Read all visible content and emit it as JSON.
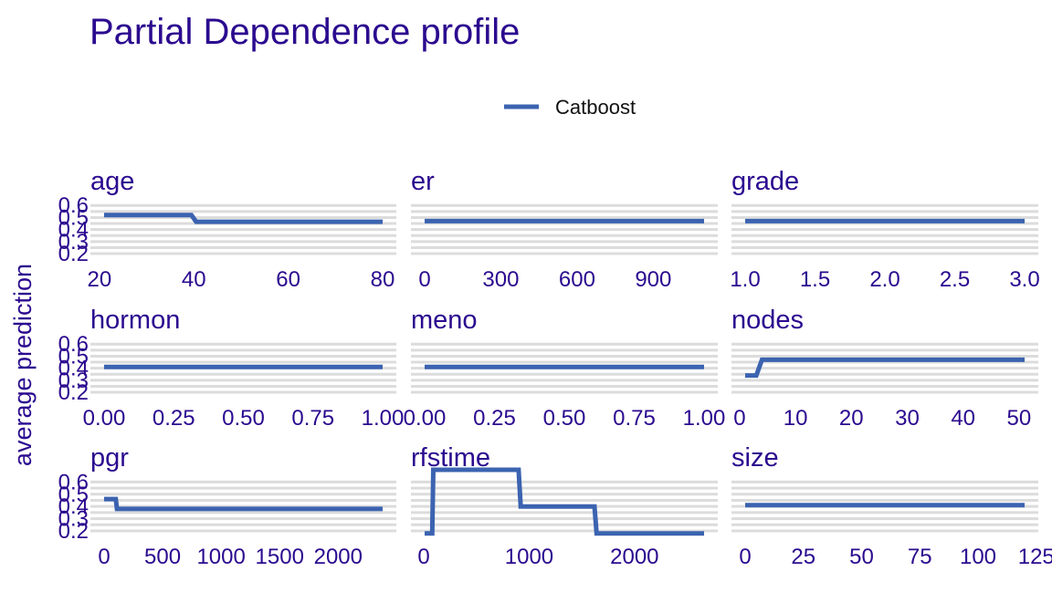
{
  "colors": {
    "text": "#2b0a8f",
    "series": "#3b63b0",
    "grid": "#dcdcdc"
  },
  "chart_data": {
    "type": "line",
    "title": "Partial Dependence profile",
    "ylabel": "average prediction",
    "legend": {
      "position": "top",
      "entries": [
        "Catboost"
      ]
    },
    "grid": true,
    "y_ticks": [
      "0.2",
      "0.3",
      "0.4",
      "0.5",
      "0.6"
    ],
    "ylim": [
      0.17,
      0.67
    ],
    "panels": [
      {
        "name": "age",
        "xlim": [
          21,
          80
        ],
        "x_ticks": [
          20,
          40,
          60,
          80
        ],
        "x_tick_labels": [
          "20",
          "40",
          "60",
          "80"
        ],
        "series": [
          {
            "name": "Catboost",
            "x": [
              21,
              39.5,
              40.5,
              80
            ],
            "y": [
              0.52,
              0.52,
              0.465,
              0.465
            ]
          }
        ]
      },
      {
        "name": "er",
        "xlim": [
          0,
          1100
        ],
        "x_ticks": [
          0,
          300,
          600,
          900
        ],
        "x_tick_labels": [
          "0",
          "300",
          "600",
          "900"
        ],
        "series": [
          {
            "name": "Catboost",
            "x": [
              0,
              1100
            ],
            "y": [
              0.47,
              0.47
            ]
          }
        ]
      },
      {
        "name": "grade",
        "xlim": [
          1,
          3
        ],
        "x_ticks": [
          1,
          1.5,
          2,
          2.5,
          3
        ],
        "x_tick_labels": [
          "1.0",
          "1.5",
          "2.0",
          "2.5",
          "3.0"
        ],
        "series": [
          {
            "name": "Catboost",
            "x": [
              1,
              3
            ],
            "y": [
              0.47,
              0.47
            ]
          }
        ]
      },
      {
        "name": "hormon",
        "xlim": [
          0,
          1
        ],
        "x_ticks": [
          0,
          0.25,
          0.5,
          0.75,
          1
        ],
        "x_tick_labels": [
          "0.00",
          "0.25",
          "0.50",
          "0.75",
          "1.00"
        ],
        "series": [
          {
            "name": "Catboost",
            "x": [
              0,
              1
            ],
            "y": [
              0.41,
              0.41
            ]
          }
        ]
      },
      {
        "name": "meno",
        "xlim": [
          0,
          1
        ],
        "x_ticks": [
          0,
          0.25,
          0.5,
          0.75,
          1
        ],
        "x_tick_labels": [
          "0.00",
          "0.25",
          "0.50",
          "0.75",
          "1.00"
        ],
        "series": [
          {
            "name": "Catboost",
            "x": [
              0,
              1
            ],
            "y": [
              0.41,
              0.41
            ]
          }
        ]
      },
      {
        "name": "nodes",
        "xlim": [
          1,
          51
        ],
        "x_ticks": [
          0,
          10,
          20,
          30,
          40,
          50
        ],
        "x_tick_labels": [
          "0",
          "10",
          "20",
          "30",
          "40",
          "50"
        ],
        "series": [
          {
            "name": "Catboost",
            "x": [
              1,
              3,
              4,
              51
            ],
            "y": [
              0.34,
              0.34,
              0.47,
              0.47
            ]
          }
        ]
      },
      {
        "name": "pgr",
        "xlim": [
          0,
          2380
        ],
        "x_ticks": [
          0,
          500,
          1000,
          1500,
          2000
        ],
        "x_tick_labels": [
          "0",
          "500",
          "1000",
          "1500",
          "2000"
        ],
        "series": [
          {
            "name": "Catboost",
            "x": [
              0,
              100,
              110,
              2380
            ],
            "y": [
              0.46,
              0.46,
              0.38,
              0.38
            ]
          }
        ]
      },
      {
        "name": "rfstime",
        "xlim": [
          8,
          2660
        ],
        "x_ticks": [
          0,
          1000,
          2000
        ],
        "x_tick_labels": [
          "0",
          "1000",
          "2000"
        ],
        "series": [
          {
            "name": "Catboost",
            "x": [
              8,
              80,
              90,
              900,
              920,
              1620,
              1640,
              2660
            ],
            "y": [
              0.18,
              0.18,
              0.7,
              0.7,
              0.4,
              0.4,
              0.18,
              0.18
            ]
          }
        ]
      },
      {
        "name": "size",
        "xlim": [
          0,
          120
        ],
        "x_ticks": [
          0,
          25,
          50,
          75,
          100,
          125
        ],
        "x_tick_labels": [
          "0",
          "25",
          "50",
          "75",
          "100",
          "125"
        ],
        "series": [
          {
            "name": "Catboost",
            "x": [
              0,
              120
            ],
            "y": [
              0.41,
              0.41
            ]
          }
        ]
      }
    ]
  }
}
